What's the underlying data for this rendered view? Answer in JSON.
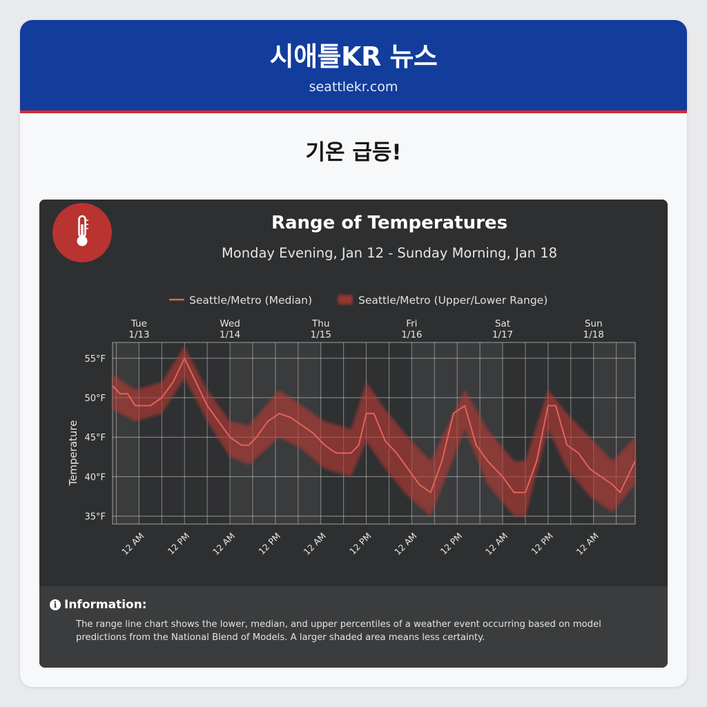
{
  "header": {
    "site_title": "시애틀KR 뉴스",
    "site_url": "seattlekr.com"
  },
  "article": {
    "headline": "기온 급등!"
  },
  "info": {
    "title": "Information:",
    "text": "The range line chart shows the lower, median, and upper percentiles of a weather event occurring based on model predictions from the National Blend of Models. A larger shaded area means less certainty.",
    "icon": "info-icon"
  },
  "colors": {
    "header_bg": "#123d9c",
    "accent_red": "#d62b2b",
    "median_line": "#e2635a",
    "range_band": "#b83a36",
    "badge_bg": "#b93330"
  },
  "chart_data": {
    "type": "line",
    "title": "Range of Temperatures",
    "subtitle": "Monday Evening, Jan 12 - Sunday Morning, Jan 18",
    "ylabel": "Temperature",
    "xlabel": "",
    "icon": "thermometer-icon",
    "ylim": [
      34,
      57
    ],
    "xlim": [
      "2026-01-12 17:00",
      "2026-01-18 11:00"
    ],
    "y_ticks": [
      35,
      40,
      45,
      50,
      55
    ],
    "y_tick_labels": [
      "35°F",
      "40°F",
      "45°F",
      "50°F",
      "55°F"
    ],
    "day_labels": [
      {
        "day": "Tue",
        "date": "1/13",
        "at": "2026-01-13 00:00"
      },
      {
        "day": "Wed",
        "date": "1/14",
        "at": "2026-01-14 00:00"
      },
      {
        "day": "Thu",
        "date": "1/15",
        "at": "2026-01-15 00:00"
      },
      {
        "day": "Fri",
        "date": "1/16",
        "at": "2026-01-16 00:00"
      },
      {
        "day": "Sat",
        "date": "1/17",
        "at": "2026-01-17 00:00"
      },
      {
        "day": "Sun",
        "date": "1/18",
        "at": "2026-01-18 00:00"
      }
    ],
    "x_ticks": [
      {
        "label": "12 AM",
        "at": "2026-01-13 00:00"
      },
      {
        "label": "12 PM",
        "at": "2026-01-13 12:00"
      },
      {
        "label": "12 AM",
        "at": "2026-01-14 00:00"
      },
      {
        "label": "12 PM",
        "at": "2026-01-14 12:00"
      },
      {
        "label": "12 AM",
        "at": "2026-01-15 00:00"
      },
      {
        "label": "12 PM",
        "at": "2026-01-15 12:00"
      },
      {
        "label": "12 AM",
        "at": "2026-01-16 00:00"
      },
      {
        "label": "12 PM",
        "at": "2026-01-16 12:00"
      },
      {
        "label": "12 AM",
        "at": "2026-01-17 00:00"
      },
      {
        "label": "12 PM",
        "at": "2026-01-17 12:00"
      },
      {
        "label": "12 AM",
        "at": "2026-01-18 00:00"
      }
    ],
    "grid": true,
    "legend_position": "top-center",
    "series": [
      {
        "name": "Seattle/Metro (Median)",
        "color": "#e2635a",
        "points": [
          [
            "2026-01-12 17:00",
            51.5
          ],
          [
            "2026-01-12 19:00",
            50.5
          ],
          [
            "2026-01-12 21:00",
            50.5
          ],
          [
            "2026-01-12 23:00",
            49
          ],
          [
            "2026-01-13 03:00",
            49
          ],
          [
            "2026-01-13 06:00",
            50
          ],
          [
            "2026-01-13 09:00",
            52
          ],
          [
            "2026-01-13 12:00",
            55
          ],
          [
            "2026-01-13 15:00",
            52
          ],
          [
            "2026-01-13 18:00",
            49
          ],
          [
            "2026-01-13 21:00",
            47
          ],
          [
            "2026-01-14 00:00",
            45
          ],
          [
            "2026-01-14 03:00",
            44
          ],
          [
            "2026-01-14 05:00",
            44
          ],
          [
            "2026-01-14 07:00",
            45
          ],
          [
            "2026-01-14 10:00",
            47
          ],
          [
            "2026-01-14 13:00",
            48
          ],
          [
            "2026-01-14 16:00",
            47.5
          ],
          [
            "2026-01-14 19:00",
            46.5
          ],
          [
            "2026-01-14 22:00",
            45.5
          ],
          [
            "2026-01-15 01:00",
            44
          ],
          [
            "2026-01-15 04:00",
            43
          ],
          [
            "2026-01-15 08:00",
            43
          ],
          [
            "2026-01-15 10:00",
            44
          ],
          [
            "2026-01-15 12:00",
            48
          ],
          [
            "2026-01-15 14:00",
            48
          ],
          [
            "2026-01-15 17:00",
            44.5
          ],
          [
            "2026-01-15 20:00",
            43
          ],
          [
            "2026-01-15 23:00",
            41
          ],
          [
            "2026-01-16 02:00",
            39
          ],
          [
            "2026-01-16 05:00",
            38
          ],
          [
            "2026-01-16 08:00",
            42
          ],
          [
            "2026-01-16 11:00",
            48
          ],
          [
            "2026-01-16 14:00",
            49
          ],
          [
            "2026-01-16 17:00",
            44
          ],
          [
            "2026-01-16 20:00",
            42
          ],
          [
            "2026-01-17 00:00",
            40
          ],
          [
            "2026-01-17 03:00",
            38
          ],
          [
            "2026-01-17 06:00",
            38
          ],
          [
            "2026-01-17 09:00",
            42
          ],
          [
            "2026-01-17 12:00",
            49
          ],
          [
            "2026-01-17 14:00",
            49
          ],
          [
            "2026-01-17 17:00",
            44
          ],
          [
            "2026-01-17 20:00",
            43
          ],
          [
            "2026-01-17 23:00",
            41
          ],
          [
            "2026-01-18 02:00",
            40
          ],
          [
            "2026-01-18 05:00",
            39
          ],
          [
            "2026-01-18 07:00",
            38
          ],
          [
            "2026-01-18 11:00",
            42
          ]
        ]
      },
      {
        "name": "Seattle/Metro (Upper/Lower Range)",
        "color": "#b83a36",
        "upper": [
          [
            "2026-01-12 17:00",
            53
          ],
          [
            "2026-01-12 23:00",
            51
          ],
          [
            "2026-01-13 06:00",
            52
          ],
          [
            "2026-01-13 12:00",
            56.5
          ],
          [
            "2026-01-13 18:00",
            51
          ],
          [
            "2026-01-14 00:00",
            47
          ],
          [
            "2026-01-14 05:00",
            46.5
          ],
          [
            "2026-01-14 13:00",
            51
          ],
          [
            "2026-01-14 19:00",
            49
          ],
          [
            "2026-01-15 01:00",
            47
          ],
          [
            "2026-01-15 08:00",
            46
          ],
          [
            "2026-01-15 12:00",
            52
          ],
          [
            "2026-01-15 17:00",
            48.5
          ],
          [
            "2026-01-15 23:00",
            45
          ],
          [
            "2026-01-16 05:00",
            42
          ],
          [
            "2026-01-16 14:00",
            51
          ],
          [
            "2026-01-16 20:00",
            46
          ],
          [
            "2026-01-17 03:00",
            42
          ],
          [
            "2026-01-17 06:00",
            42
          ],
          [
            "2026-01-17 12:00",
            51
          ],
          [
            "2026-01-17 17:00",
            48
          ],
          [
            "2026-01-17 23:00",
            45
          ],
          [
            "2026-01-18 05:00",
            42
          ],
          [
            "2026-01-18 11:00",
            45
          ]
        ],
        "lower": [
          [
            "2026-01-12 17:00",
            48.5
          ],
          [
            "2026-01-12 23:00",
            47
          ],
          [
            "2026-01-13 06:00",
            48
          ],
          [
            "2026-01-13 12:00",
            52.5
          ],
          [
            "2026-01-13 18:00",
            47
          ],
          [
            "2026-01-14 00:00",
            42.5
          ],
          [
            "2026-01-14 05:00",
            41.5
          ],
          [
            "2026-01-14 13:00",
            45
          ],
          [
            "2026-01-14 19:00",
            43.5
          ],
          [
            "2026-01-15 01:00",
            41
          ],
          [
            "2026-01-15 08:00",
            40
          ],
          [
            "2026-01-15 12:00",
            44.5
          ],
          [
            "2026-01-15 17:00",
            41
          ],
          [
            "2026-01-15 23:00",
            37.5
          ],
          [
            "2026-01-16 05:00",
            35
          ],
          [
            "2026-01-16 14:00",
            46
          ],
          [
            "2026-01-16 20:00",
            39
          ],
          [
            "2026-01-17 03:00",
            35
          ],
          [
            "2026-01-17 06:00",
            35
          ],
          [
            "2026-01-17 12:00",
            46
          ],
          [
            "2026-01-17 17:00",
            41
          ],
          [
            "2026-01-17 23:00",
            37.5
          ],
          [
            "2026-01-18 05:00",
            35.5
          ],
          [
            "2026-01-18 11:00",
            39
          ]
        ]
      }
    ]
  }
}
